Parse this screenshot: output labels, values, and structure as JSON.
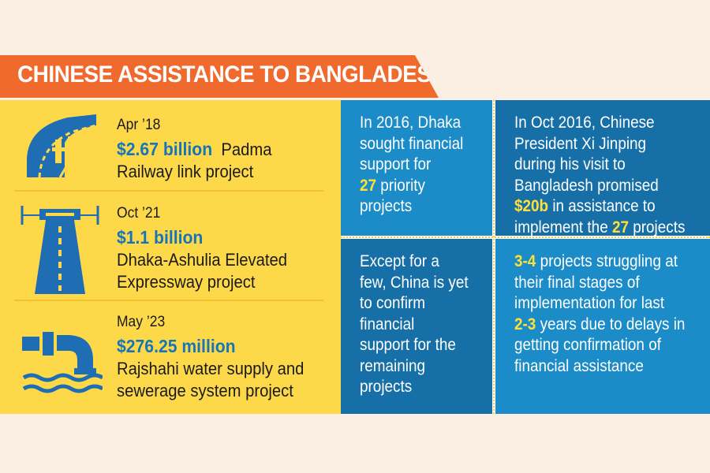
{
  "banner": {
    "title": "CHINESE ASSISTANCE TO BANGLADESH"
  },
  "projects": [
    {
      "date": "Apr ’18",
      "amount": "$2.67 billion",
      "name_inline": "Padma",
      "name_rest": [
        "Railway link project"
      ],
      "icon": "railway-bridge-icon"
    },
    {
      "date": "Oct ’21",
      "amount": "$1.1 billion",
      "name_inline": "",
      "name_rest": [
        "Dhaka-Ashulia Elevated",
        "Expressway project"
      ],
      "icon": "elevated-expressway-icon"
    },
    {
      "date": "May ’23",
      "amount": "$276.25 million",
      "name_inline": "",
      "name_rest": [
        "Rajshahi water supply and",
        "sewerage system project"
      ],
      "icon": "water-pipe-icon"
    }
  ],
  "facts": {
    "top_left": {
      "l1": "In 2016, Dhaka",
      "l2": "sought financial",
      "l3": "support for",
      "l4_hl": "27",
      "l4_rest": " priority",
      "l5": "projects"
    },
    "top_right": {
      "l1": "In Oct 2016, Chinese",
      "l2": "President Xi Jinping",
      "l3": "during his visit to",
      "l4": "Bangladesh promised",
      "l5_hl": "$20b",
      "l5_rest": " in assistance to",
      "l6_pre": "implement the ",
      "l6_hl": "27",
      "l6_rest": " projects"
    },
    "bottom_left": {
      "l1": "Except for a",
      "l2": "few, China is yet",
      "l3": "to confirm",
      "l4": "financial",
      "l5": "support for the",
      "l6": "remaining",
      "l7": "projects"
    },
    "bottom_right": {
      "l1_hl": "3-4",
      "l1_rest": " projects struggling at",
      "l2": "their final stages of",
      "l3": "implementation for last",
      "l4_hl": "2-3",
      "l4_rest": " years due to delays in",
      "l5": "getting confirmation of",
      "l6": "financial assistance"
    }
  },
  "colors": {
    "banner": "#ef6a2c",
    "yellow_panel": "#fdd94a",
    "blue_light": "#1b8cc8",
    "blue_dark": "#166fa7",
    "amount_blue": "#1775b7",
    "highlight": "#ffe03a",
    "icon_blue": "#1f6db3"
  }
}
